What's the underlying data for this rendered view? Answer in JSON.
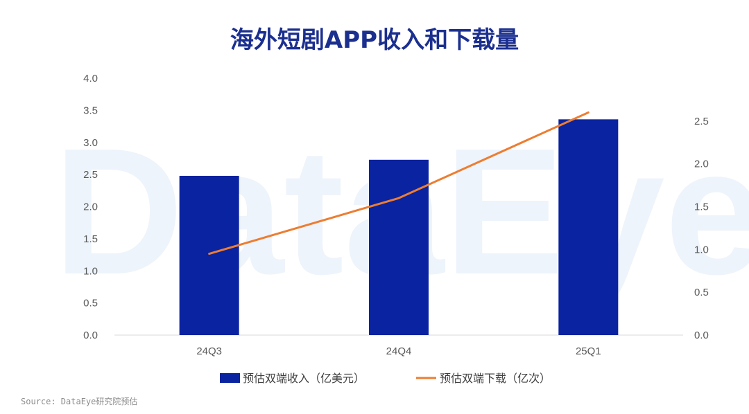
{
  "title": "海外短剧APP收入和下载量",
  "watermark": "DataEye",
  "source": "Source: DataEye研究院预估",
  "colors": {
    "bar": "#0a23a0",
    "line": "#ed7d31",
    "title": "#1b2f8f",
    "watermark": "#eef4fb"
  },
  "chart_data": {
    "type": "bar",
    "categories": [
      "24Q3",
      "24Q4",
      "25Q1"
    ],
    "series": [
      {
        "name": "预估双端收入（亿美元）",
        "type": "bar",
        "axis": "left",
        "values": [
          2.48,
          2.73,
          3.36
        ]
      },
      {
        "name": "预估双端下载（亿次）",
        "type": "line",
        "axis": "right",
        "values": [
          0.95,
          1.6,
          2.6
        ]
      }
    ],
    "y_left": {
      "min": 0,
      "max": 4.0,
      "ticks": [
        "0.0",
        "0.5",
        "1.0",
        "1.5",
        "2.0",
        "2.5",
        "3.0",
        "3.5",
        "4.0"
      ]
    },
    "y_right": {
      "min": 0,
      "max": 3.0,
      "ticks": [
        "0.0",
        "0.5",
        "1.0",
        "1.5",
        "2.0",
        "2.5"
      ]
    },
    "grid": false,
    "legend": "bottom"
  }
}
